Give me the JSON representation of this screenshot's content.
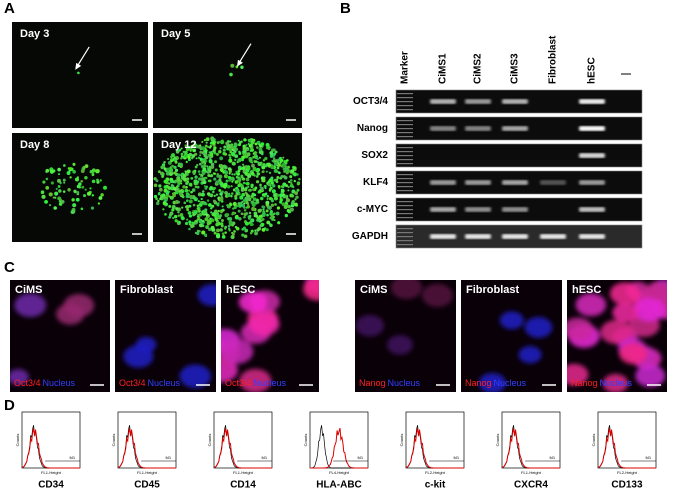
{
  "panels": {
    "a": "A",
    "b": "B",
    "c": "C",
    "d": "D"
  },
  "panel_a": {
    "images": [
      {
        "label": "Day 3"
      },
      {
        "label": "Day 5"
      },
      {
        "label": "Day 8"
      },
      {
        "label": "Day 12"
      }
    ]
  },
  "panel_b": {
    "columns": [
      "Marker",
      "CiMS1",
      "CiMS2",
      "CiMS3",
      "Fibroblast",
      "hESC",
      "—"
    ],
    "rows": [
      "OCT3/4",
      "Nanog",
      "SOX2",
      "KLF4",
      "c-MYC",
      "GAPDH"
    ]
  },
  "panel_c": {
    "images": [
      {
        "title": "CiMS",
        "stain": "Oct3/4",
        "counterstain": "Nucleus"
      },
      {
        "title": "Fibroblast",
        "stain": "Oct3/4",
        "counterstain": "Nucleus"
      },
      {
        "title": "hESC",
        "stain": "Oct3/4",
        "counterstain": "Nucleus"
      },
      {
        "title": "CiMS",
        "stain": "Nanog",
        "counterstain": "Nucleus"
      },
      {
        "title": "Fibroblast",
        "stain": "Nanog",
        "counterstain": "Nucleus"
      },
      {
        "title": "hESC",
        "stain": "Nanog",
        "counterstain": "Nucleus"
      }
    ]
  },
  "panel_d": {
    "y_label": "Counts",
    "gate": "M1",
    "histograms": [
      {
        "marker": "CD34",
        "x_label": "FL1-Height"
      },
      {
        "marker": "CD45",
        "x_label": "FL1-Height"
      },
      {
        "marker": "CD14",
        "x_label": "FL1-Height"
      },
      {
        "marker": "HLA-ABC",
        "x_label": "FL4-Height"
      },
      {
        "marker": "c-kit",
        "x_label": "FL2-Height"
      },
      {
        "marker": "CXCR4",
        "x_label": "FL1-Height"
      },
      {
        "marker": "CD133",
        "x_label": "FL2-Height"
      }
    ]
  }
}
